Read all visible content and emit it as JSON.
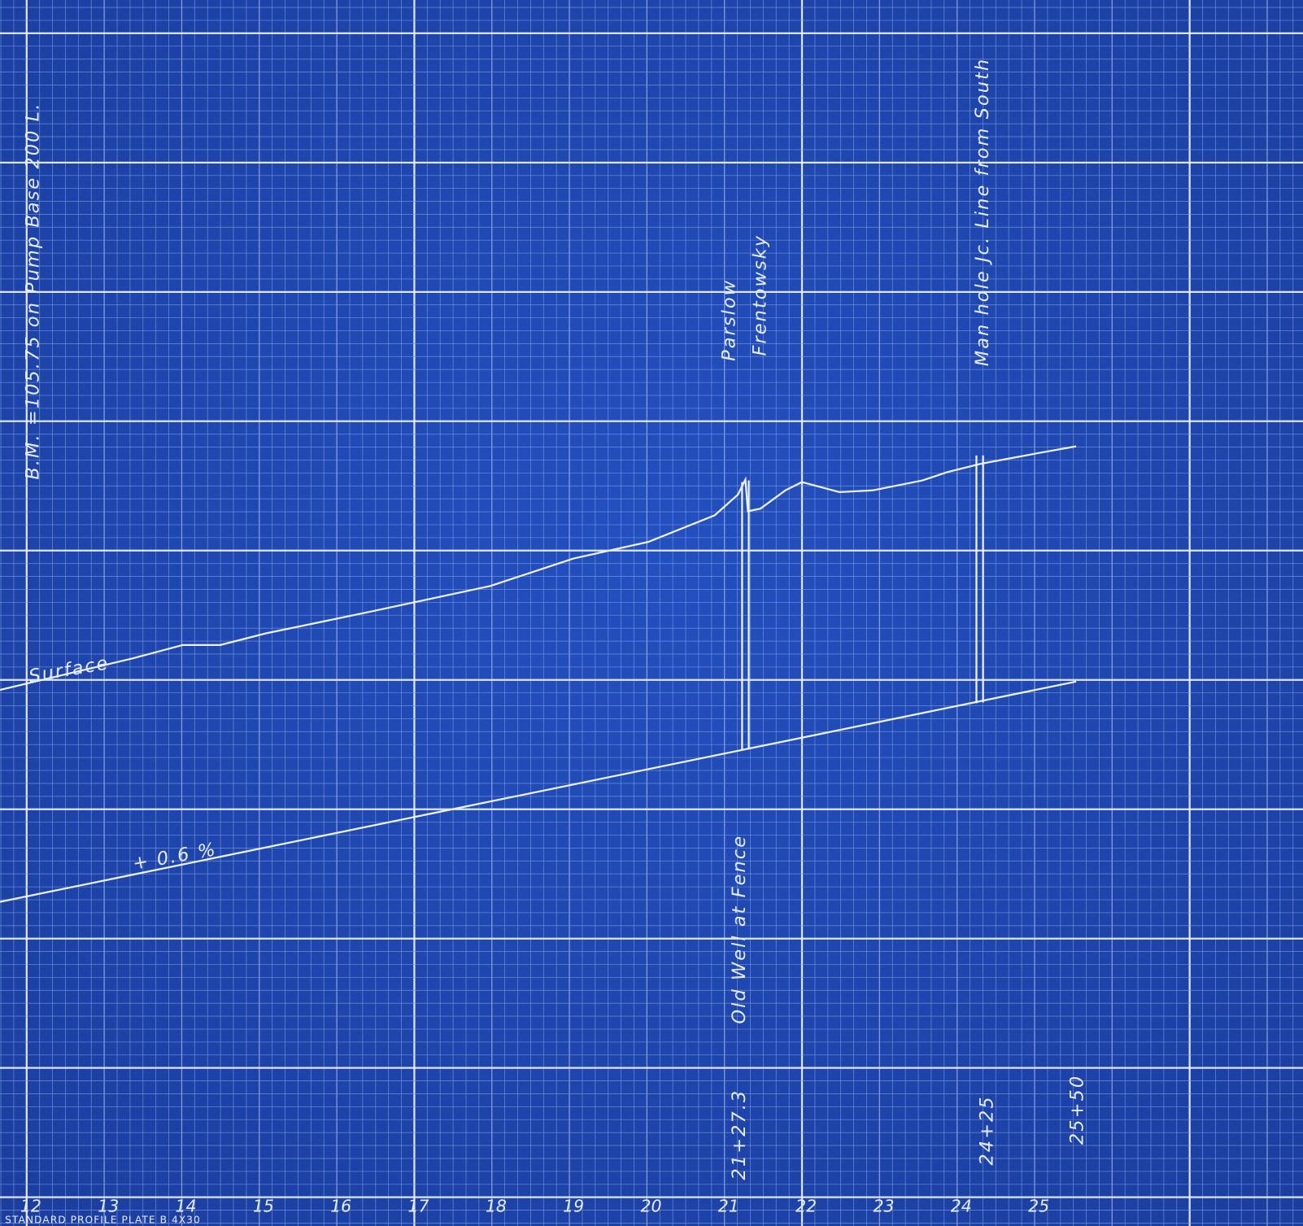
{
  "notes": {
    "benchmark": "B.M. =105.75 on Pump Base 200 L.",
    "owner_1": "Parslow",
    "owner_2": "Frentowsky",
    "manhole": "Man hole Jc. Line from South",
    "surface": "Surface",
    "grade": "+ 0.6 %",
    "old_well": "Old Well at Fence"
  },
  "stations": {
    "well": "21+27.3",
    "manhole": "24+25",
    "end": "25+50"
  },
  "axis": {
    "labels": [
      "12",
      "13",
      "14",
      "15",
      "16",
      "17",
      "18",
      "19",
      "20",
      "21",
      "22",
      "23",
      "24",
      "25"
    ]
  },
  "footer": "STANDARD PROFILE PLATE B 4X30"
}
